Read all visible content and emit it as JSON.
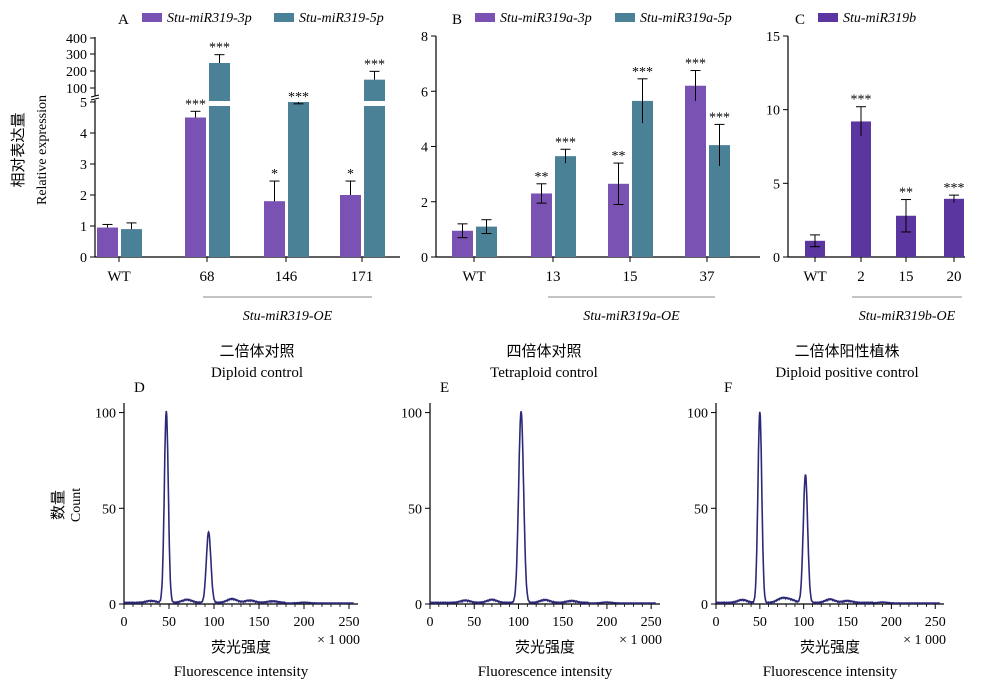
{
  "colors": {
    "purple": "#7952b3",
    "teal": "#4a8197",
    "darkpurple": "#5b35a0",
    "flow_line": "#2c2a78",
    "axis": "#000000"
  },
  "ylabel_cn": "相对表达量",
  "ylabel_en": "Relative expression",
  "hist_ylabel_cn": "数量",
  "hist_ylabel_en": "Count",
  "chart_data": [
    {
      "panel": "A",
      "type": "bar",
      "categories": [
        "WT",
        "68",
        "146",
        "171"
      ],
      "group_label": "Stu-miR319-OE",
      "broken_axis": true,
      "y_ticks_lower": [
        "0",
        "1",
        "2",
        "3",
        "4",
        "5"
      ],
      "y_ticks_upper": [
        "100",
        "200",
        "300",
        "400"
      ],
      "ylim": [
        0,
        400
      ],
      "series": [
        {
          "name": "Stu-miR319-3p",
          "color": "#7952b3",
          "values": [
            0.95,
            4.5,
            1.8,
            2.0
          ],
          "errors": [
            0.1,
            0.2,
            0.65,
            0.45
          ],
          "sig": [
            "",
            "***",
            "*",
            "*"
          ]
        },
        {
          "name": "Stu-miR319-5p",
          "color": "#4a8197",
          "values": [
            0.9,
            250,
            5.0,
            150
          ],
          "errors": [
            0.2,
            50,
            0.1,
            50
          ],
          "sig": [
            "",
            "***",
            "***",
            "***"
          ]
        }
      ]
    },
    {
      "panel": "B",
      "type": "bar",
      "categories": [
        "WT",
        "13",
        "15",
        "37"
      ],
      "group_label": "Stu-miR319a-OE",
      "y_ticks": [
        "0",
        "2",
        "4",
        "6",
        "8"
      ],
      "ylim": [
        0,
        8
      ],
      "series": [
        {
          "name": "Stu-miR319a-3p",
          "color": "#7952b3",
          "values": [
            0.95,
            2.3,
            2.65,
            6.2
          ],
          "errors": [
            0.25,
            0.35,
            0.75,
            0.55
          ],
          "sig": [
            "",
            "**",
            "**",
            "***"
          ]
        },
        {
          "name": "Stu-miR319a-5p",
          "color": "#4a8197",
          "values": [
            1.1,
            3.65,
            5.65,
            4.05
          ],
          "errors": [
            0.25,
            0.25,
            0.8,
            0.75
          ],
          "sig": [
            "",
            "***",
            "***",
            "***"
          ]
        }
      ]
    },
    {
      "panel": "C",
      "type": "bar",
      "categories": [
        "WT",
        "2",
        "15",
        "20"
      ],
      "group_label": "Stu-miR319b-OE",
      "y_ticks": [
        "0",
        "5",
        "10",
        "15"
      ],
      "ylim": [
        0,
        15
      ],
      "series": [
        {
          "name": "Stu-miR319b",
          "color": "#5b35a0",
          "values": [
            1.1,
            9.2,
            2.8,
            3.95
          ],
          "errors": [
            0.4,
            1.0,
            1.1,
            0.25
          ],
          "sig": [
            "",
            "***",
            "**",
            "***"
          ]
        }
      ]
    },
    {
      "panel": "D",
      "type": "line",
      "title_cn": "二倍体对照",
      "title_en": "Diploid control",
      "xlabel_cn": "荧光强度",
      "xlabel_en": "Fluorescence intensity",
      "x_multiplier": "× 1 000",
      "x_ticks": [
        "0",
        "50",
        "100",
        "150",
        "200",
        "250"
      ],
      "y_ticks": [
        "0",
        "50",
        "100"
      ],
      "xlim": [
        0,
        260
      ],
      "ylim": [
        0,
        105
      ],
      "series": [
        {
          "peaks": [
            {
              "x": 47,
              "y": 100,
              "w": 2.2
            },
            {
              "x": 94,
              "y": 37,
              "w": 2.5
            }
          ],
          "noise": [
            {
              "x": 30,
              "y": 1.0
            },
            {
              "x": 70,
              "y": 1.6
            },
            {
              "x": 120,
              "y": 2.0
            },
            {
              "x": 140,
              "y": 1.2
            },
            {
              "x": 165,
              "y": 0.8
            },
            {
              "x": 200,
              "y": 0.4
            }
          ]
        }
      ]
    },
    {
      "panel": "E",
      "type": "line",
      "title_cn": "四倍体对照",
      "title_en": "Tetraploid control",
      "xlabel_cn": "荧光强度",
      "xlabel_en": "Fluorescence intensity",
      "x_multiplier": "× 1 000",
      "x_ticks": [
        "0",
        "50",
        "100",
        "150",
        "200",
        "250"
      ],
      "y_ticks": [
        "0",
        "50",
        "100"
      ],
      "xlim": [
        0,
        260
      ],
      "ylim": [
        0,
        105
      ],
      "series": [
        {
          "peaks": [
            {
              "x": 103,
              "y": 100,
              "w": 2.8
            }
          ],
          "noise": [
            {
              "x": 40,
              "y": 1.2
            },
            {
              "x": 70,
              "y": 1.6
            },
            {
              "x": 130,
              "y": 1.5
            },
            {
              "x": 160,
              "y": 1.0
            },
            {
              "x": 200,
              "y": 0.5
            }
          ]
        }
      ]
    },
    {
      "panel": "F",
      "type": "line",
      "title_cn": "二倍体阳性植株",
      "title_en": "Diploid positive control",
      "xlabel_cn": "荧光强度",
      "xlabel_en": "Fluorescence intensity",
      "x_multiplier": "× 1 000",
      "x_ticks": [
        "0",
        "50",
        "100",
        "150",
        "200",
        "250"
      ],
      "y_ticks": [
        "0",
        "50",
        "100"
      ],
      "xlim": [
        0,
        260
      ],
      "ylim": [
        0,
        105
      ],
      "series": [
        {
          "peaks": [
            {
              "x": 50,
              "y": 100,
              "w": 2.2
            },
            {
              "x": 102,
              "y": 67,
              "w": 2.5
            }
          ],
          "noise": [
            {
              "x": 30,
              "y": 1.5
            },
            {
              "x": 75,
              "y": 2.2
            },
            {
              "x": 85,
              "y": 1.5
            },
            {
              "x": 130,
              "y": 1.8
            },
            {
              "x": 150,
              "y": 1.0
            },
            {
              "x": 190,
              "y": 0.5
            }
          ]
        }
      ]
    }
  ]
}
